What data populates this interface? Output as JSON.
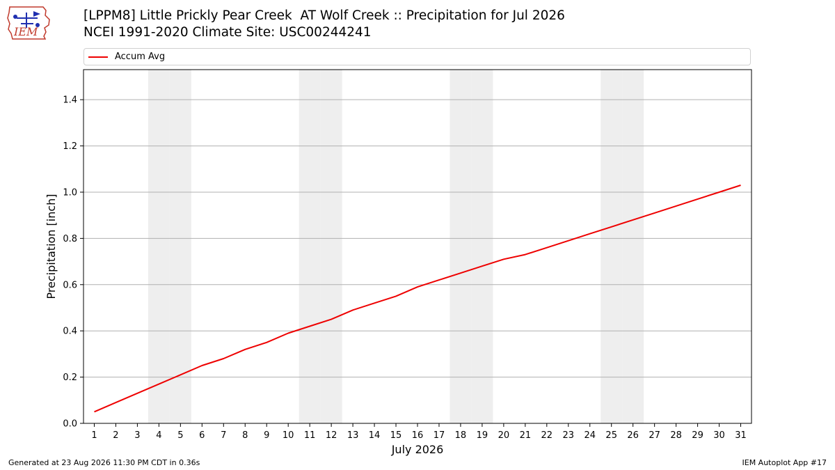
{
  "logo": {
    "text": "IEM"
  },
  "title_line1": "[LPPM8] Little Prickly Pear Creek  AT Wolf Creek :: Precipitation for Jul 2026",
  "title_line2": "NCEI 1991-2020 Climate Site: USC00244241",
  "footer": {
    "generated": "Generated at 23 Aug 2026 11:30 PM CDT in 0.36s",
    "app": "IEM Autoplot App #17"
  },
  "colors": {
    "series": "#ee0000",
    "weekend": "#eeeeee",
    "grid": "#b0b0b0"
  },
  "chart_data": {
    "type": "line",
    "xlabel": "July 2026",
    "ylabel": "Precipitation [inch]",
    "xlim": [
      0.5,
      31.5
    ],
    "ylim": [
      0.0,
      1.53
    ],
    "yticks": [
      0.0,
      0.2,
      0.4,
      0.6,
      0.8,
      1.0,
      1.2,
      1.4
    ],
    "ytick_labels": [
      "0.0",
      "0.2",
      "0.4",
      "0.6",
      "0.8",
      "1.0",
      "1.2",
      "1.4"
    ],
    "xticks": [
      1,
      2,
      3,
      4,
      5,
      6,
      7,
      8,
      9,
      10,
      11,
      12,
      13,
      14,
      15,
      16,
      17,
      18,
      19,
      20,
      21,
      22,
      23,
      24,
      25,
      26,
      27,
      28,
      29,
      30,
      31
    ],
    "xtick_labels": [
      "1",
      "2",
      "3",
      "4",
      "5",
      "6",
      "7",
      "8",
      "9",
      "10",
      "11",
      "12",
      "13",
      "14",
      "15",
      "16",
      "17",
      "18",
      "19",
      "20",
      "21",
      "22",
      "23",
      "24",
      "25",
      "26",
      "27",
      "28",
      "29",
      "30",
      "31"
    ],
    "grid": "horizontal",
    "legend_position": "top",
    "weekend_days": [
      4,
      5,
      11,
      12,
      18,
      19,
      25,
      26
    ],
    "series": [
      {
        "name": "Accum Avg",
        "x": [
          1,
          2,
          3,
          4,
          5,
          6,
          7,
          8,
          9,
          10,
          11,
          12,
          13,
          14,
          15,
          16,
          17,
          18,
          19,
          20,
          21,
          22,
          23,
          24,
          25,
          26,
          27,
          28,
          29,
          30,
          31
        ],
        "values": [
          0.05,
          0.09,
          0.13,
          0.17,
          0.21,
          0.25,
          0.28,
          0.32,
          0.35,
          0.39,
          0.42,
          0.45,
          0.49,
          0.52,
          0.55,
          0.59,
          0.62,
          0.65,
          0.68,
          0.71,
          0.73,
          0.76,
          0.79,
          0.82,
          0.85,
          0.88,
          0.91,
          0.94,
          0.97,
          1.0,
          1.03
        ]
      }
    ]
  }
}
